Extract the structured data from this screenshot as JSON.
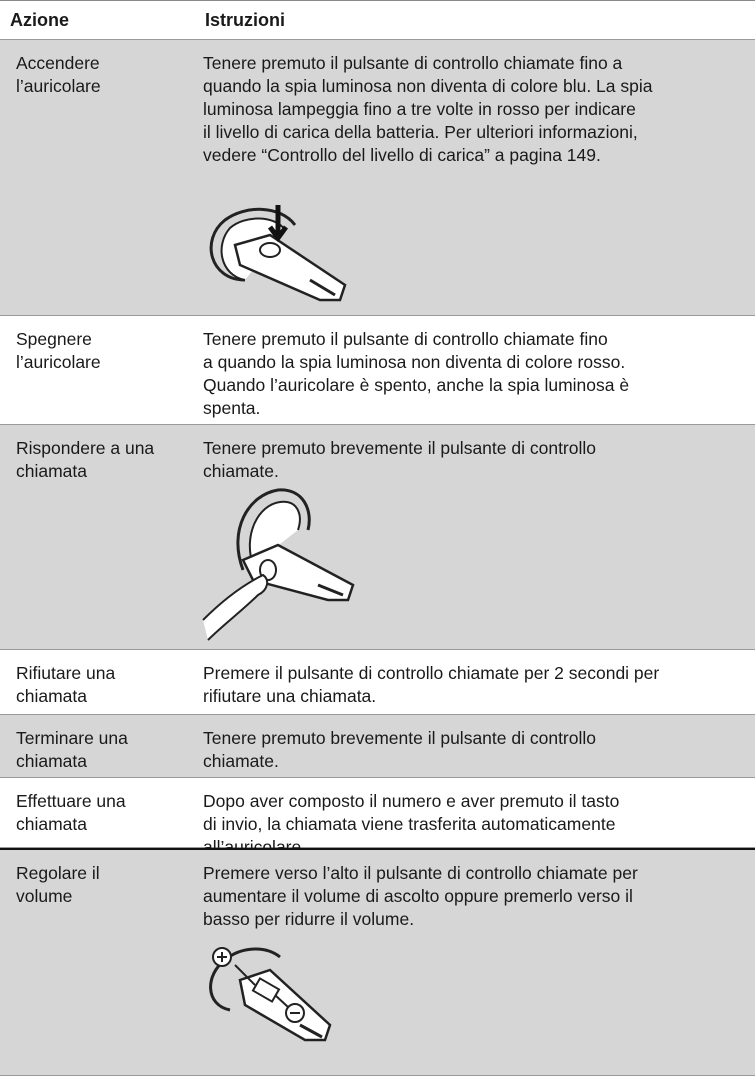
{
  "table": {
    "header": [
      "Azione",
      "Istruzioni"
    ],
    "rows": [
      {
        "action": [
          "Accendere",
          "l’auricolare"
        ],
        "instructions": [
          "Tenere premuto il pulsante di controllo chiamate fino a",
          "quando la spia luminosa non diventa di colore blu. La spia",
          "luminosa lampeggia fino a tre volte in rosso per indicare",
          "il livello di carica della batteria. Per ulteriori informazioni,",
          "vedere “Controllo del livello di carica” a pagina 149."
        ]
      },
      {
        "action": [
          "Spegnere",
          "l’auricolare"
        ],
        "instructions": [
          "Tenere premuto il pulsante di controllo chiamate fino",
          "a quando la spia luminosa non diventa di colore rosso.",
          "Quando l’auricolare è spento, anche la spia luminosa è",
          "spenta."
        ]
      },
      {
        "action": [
          "Rispondere a una",
          "chiamata"
        ],
        "instructions": [
          "Tenere premuto brevemente il pulsante di controllo",
          "chiamate."
        ]
      },
      {
        "action": [
          "Rifiutare una",
          "chiamata"
        ],
        "instructions": [
          "Premere il pulsante di controllo chiamate per 2 secondi per",
          "rifiutare una chiamata."
        ]
      },
      {
        "action": [
          "Terminare una",
          "chiamata"
        ],
        "instructions": [
          "Tenere premuto brevemente il pulsante di controllo",
          "chiamate."
        ]
      },
      {
        "action": [
          "Effettuare una",
          "chiamata"
        ],
        "instructions": [
          "Dopo aver composto il numero e aver premuto il tasto",
          "di invio, la chiamata viene trasferita automaticamente",
          "all’auricolare."
        ]
      },
      {
        "action": [
          "Regolare il",
          "volume"
        ],
        "instructions": [
          "Premere verso l’alto il pulsante di controllo chiamate per",
          "aumentare il volume di ascolto oppure premerlo verso il",
          "basso per ridurre il volume."
        ]
      }
    ]
  }
}
